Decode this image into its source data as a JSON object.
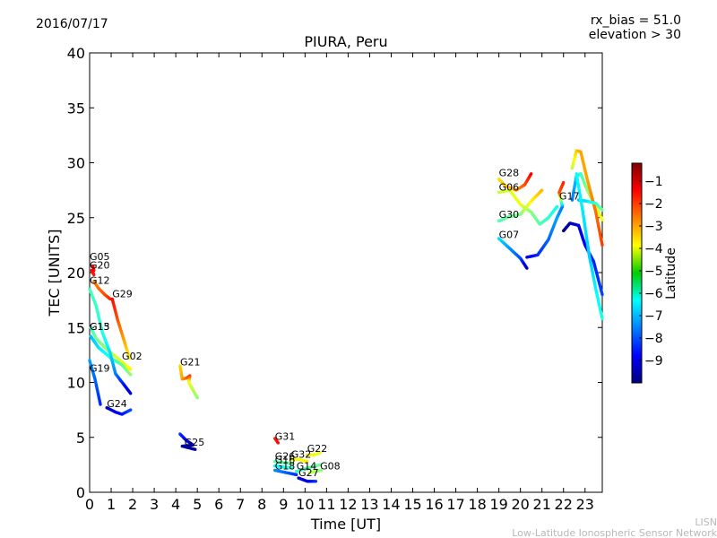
{
  "header": {
    "date": "2016/07/17",
    "rx_bias": "rx_bias = 51.0",
    "elevation": "elevation > 30"
  },
  "credits": {
    "line1": "LISN",
    "line2": "Low-Latitude Ionospheric Sensor Network"
  },
  "colors": {
    "colormap": "jet",
    "axis": "#000000",
    "background": "#ffffff"
  },
  "chart_data": {
    "type": "scatter",
    "title": "PIURA, Peru",
    "xlabel": "Time [UT]",
    "ylabel": "TEC [UNITS]",
    "xlim": [
      0,
      23.8
    ],
    "ylim": [
      0,
      40
    ],
    "x_ticks": [
      "0",
      "1",
      "2",
      "3",
      "4",
      "5",
      "6",
      "7",
      "8",
      "9",
      "10",
      "11",
      "12",
      "13",
      "14",
      "15",
      "16",
      "17",
      "18",
      "19",
      "20",
      "21",
      "22",
      "23"
    ],
    "y_ticks": [
      "0",
      "5",
      "10",
      "15",
      "20",
      "25",
      "30",
      "35",
      "40"
    ],
    "grid": false,
    "colorbar": {
      "label": "Latitude",
      "range": [
        -10,
        -0.2
      ],
      "ticks": [
        "−1",
        "−2",
        "−3",
        "−4",
        "−5",
        "−6",
        "−7",
        "−8",
        "−9"
      ]
    },
    "series": [
      {
        "name": "G05",
        "label_at": [
          0.0,
          21.0
        ],
        "points": [
          [
            0.15,
            20.6,
            -1.3
          ],
          [
            0.2,
            20.2,
            -1.5
          ]
        ]
      },
      {
        "name": "G20",
        "label_at": [
          0.0,
          20.2
        ],
        "points": [
          [
            0.1,
            20.2,
            -1.4
          ],
          [
            0.2,
            19.8,
            -1.6
          ]
        ]
      },
      {
        "name": "G12",
        "label_at": [
          0.0,
          18.8
        ],
        "points": [
          [
            0.2,
            19.2,
            -2.7
          ],
          [
            0.4,
            18.6,
            -2.5
          ],
          [
            0.7,
            18.0,
            -2.2
          ],
          [
            0.95,
            17.6,
            -1.8
          ]
        ]
      },
      {
        "name": "G29",
        "label_at": [
          1.05,
          17.6
        ],
        "points": [
          [
            1.05,
            17.6,
            -1.5
          ],
          [
            1.3,
            15.7,
            -2.2
          ],
          [
            1.6,
            13.8,
            -3.0
          ],
          [
            1.85,
            12.2,
            -3.8
          ]
        ]
      },
      {
        "name": "G15",
        "label_at": [
          0.0,
          14.6
        ],
        "points": [
          [
            0.05,
            15.0,
            -5.8
          ],
          [
            0.3,
            14.0,
            -5.3
          ],
          [
            0.8,
            13.0,
            -4.8
          ],
          [
            1.3,
            12.2,
            -4.3
          ],
          [
            1.9,
            11.2,
            -3.8
          ]
        ]
      },
      {
        "name": "G13",
        "label_at": [
          0.0,
          14.6
        ],
        "points": [
          [
            0.05,
            14.2,
            -7.0
          ],
          [
            0.4,
            13.2,
            -6.6
          ],
          [
            1.0,
            12.2,
            -6.0
          ],
          [
            1.5,
            11.6,
            -5.4
          ],
          [
            1.9,
            10.7,
            -4.9
          ]
        ]
      },
      {
        "name": "G02",
        "label_at": [
          1.5,
          11.9
        ],
        "points": [
          [
            0.0,
            18.5,
            -5.6
          ],
          [
            0.3,
            17.0,
            -5.8
          ],
          [
            0.6,
            14.5,
            -6.0
          ],
          [
            0.95,
            12.7,
            -6.6
          ],
          [
            1.2,
            10.8,
            -7.5
          ],
          [
            1.55,
            9.9,
            -8.5
          ],
          [
            1.9,
            9.0,
            -9.2
          ]
        ]
      },
      {
        "name": "G19",
        "label_at": [
          0.0,
          10.8
        ],
        "points": [
          [
            0.0,
            12.0,
            -7.2
          ],
          [
            0.25,
            10.3,
            -7.8
          ],
          [
            0.5,
            8.0,
            -8.4
          ]
        ]
      },
      {
        "name": "G24",
        "label_at": [
          0.8,
          7.6
        ],
        "points": [
          [
            0.8,
            7.7,
            -9.4
          ],
          [
            1.2,
            7.3,
            -9.0
          ],
          [
            1.5,
            7.1,
            -8.6
          ],
          [
            1.9,
            7.5,
            -8.1
          ]
        ]
      },
      {
        "name": "G21",
        "label_at": [
          4.2,
          11.4
        ],
        "points": [
          [
            4.2,
            11.5,
            -3.5
          ],
          [
            4.3,
            10.3,
            -3.0
          ],
          [
            4.5,
            10.4,
            -2.4
          ],
          [
            4.65,
            10.6,
            -1.8
          ],
          [
            4.6,
            10.0,
            -4.0
          ],
          [
            4.8,
            9.3,
            -4.5
          ],
          [
            5.0,
            8.6,
            -4.9
          ]
        ]
      },
      {
        "name": "G25",
        "label_at": [
          4.4,
          4.1
        ],
        "points": [
          [
            4.2,
            5.3,
            -8.3
          ],
          [
            4.5,
            4.7,
            -8.8
          ],
          [
            4.8,
            4.3,
            -9.3
          ],
          [
            4.3,
            4.2,
            -9.6
          ],
          [
            4.9,
            3.9,
            -9.8
          ]
        ]
      },
      {
        "name": "G31",
        "label_at": [
          8.6,
          4.6
        ],
        "points": [
          [
            8.6,
            4.9,
            -1.8
          ],
          [
            8.75,
            4.5,
            -1.5
          ]
        ]
      },
      {
        "name": "G22",
        "label_at": [
          10.1,
          3.5
        ],
        "points": [
          [
            10.1,
            3.4,
            -3.6
          ],
          [
            10.4,
            3.4,
            -3.9
          ],
          [
            10.7,
            3.6,
            -4.1
          ]
        ]
      },
      {
        "name": "G32",
        "label_at": [
          9.35,
          3.0
        ],
        "points": [
          [
            9.35,
            3.0,
            -4.2
          ],
          [
            9.7,
            3.0,
            -4.0
          ],
          [
            10.1,
            2.8,
            -3.7
          ]
        ]
      },
      {
        "name": "G26",
        "label_at": [
          8.6,
          2.8
        ],
        "points": [
          [
            8.6,
            2.8,
            -5.6
          ],
          [
            9.0,
            2.7,
            -5.4
          ],
          [
            9.4,
            2.6,
            -5.2
          ]
        ]
      },
      {
        "name": "G16",
        "label_at": [
          8.6,
          2.5
        ],
        "points": [
          [
            8.6,
            2.4,
            -6.4
          ],
          [
            9.0,
            2.3,
            -6.2
          ],
          [
            9.4,
            2.2,
            -6.0
          ]
        ]
      },
      {
        "name": "G18",
        "label_at": [
          8.6,
          1.9
        ],
        "points": [
          [
            8.6,
            2.0,
            -7.4
          ],
          [
            9.1,
            1.8,
            -7.8
          ],
          [
            9.6,
            1.6,
            -8.3
          ]
        ]
      },
      {
        "name": "G14",
        "label_at": [
          9.6,
          1.9
        ],
        "points": [
          [
            9.6,
            1.9,
            -5.9
          ],
          [
            10.1,
            2.2,
            -5.6
          ],
          [
            10.7,
            2.5,
            -5.3
          ]
        ]
      },
      {
        "name": "G08",
        "label_at": [
          10.7,
          1.9
        ],
        "points": [
          [
            10.2,
            1.8,
            -4.4
          ],
          [
            10.5,
            1.9,
            -4.7
          ],
          [
            10.75,
            2.0,
            -5.0
          ]
        ]
      },
      {
        "name": "G27",
        "label_at": [
          9.7,
          1.3
        ],
        "points": [
          [
            9.7,
            1.3,
            -9.3
          ],
          [
            10.1,
            1.0,
            -9.0
          ],
          [
            10.5,
            1.0,
            -8.3
          ]
        ]
      },
      {
        "name": "G28",
        "label_at": [
          19.0,
          28.6
        ],
        "points": [
          [
            19.0,
            28.5,
            -3.6
          ],
          [
            19.3,
            27.9,
            -3.3
          ],
          [
            19.8,
            27.5,
            -3.0
          ],
          [
            20.2,
            28.0,
            -2.2
          ],
          [
            20.5,
            29.0,
            -1.4
          ]
        ]
      },
      {
        "name": "G06",
        "label_at": [
          19.0,
          27.3
        ],
        "points": [
          [
            19.0,
            27.3,
            -4.4
          ],
          [
            19.5,
            27.5,
            -4.2
          ],
          [
            20.0,
            26.2,
            -4.0
          ],
          [
            20.5,
            25.5,
            -5.0
          ],
          [
            20.9,
            24.4,
            -5.5
          ],
          [
            21.3,
            25.0,
            -5.9
          ],
          [
            21.7,
            26.0,
            -6.2
          ]
        ]
      },
      {
        "name": "G30",
        "label_at": [
          19.0,
          24.8
        ],
        "points": [
          [
            19.0,
            24.7,
            -5.6
          ],
          [
            19.5,
            25.1,
            -5.4
          ],
          [
            20.0,
            25.3,
            -5.1
          ],
          [
            20.5,
            26.5,
            -3.8
          ],
          [
            21.0,
            27.5,
            -3.2
          ]
        ]
      },
      {
        "name": "G07",
        "label_at": [
          19.0,
          23.0
        ],
        "points": [
          [
            19.0,
            23.1,
            -6.6
          ],
          [
            19.5,
            22.2,
            -7.3
          ],
          [
            20.0,
            21.3,
            -8.0
          ],
          [
            20.3,
            20.4,
            -9.4
          ]
        ]
      },
      {
        "name": "G17",
        "label_at": [
          21.8,
          26.5
        ],
        "points": [
          [
            20.3,
            21.4,
            -9.1
          ],
          [
            20.8,
            21.6,
            -8.4
          ],
          [
            21.3,
            23.0,
            -7.8
          ],
          [
            21.7,
            25.0,
            -7.2
          ],
          [
            21.95,
            26.0,
            -7.6
          ],
          [
            21.8,
            27.3,
            -2.2
          ],
          [
            22.0,
            28.2,
            -1.8
          ]
        ]
      },
      {
        "name": "",
        "label_at": null,
        "points": [
          [
            22.0,
            23.8,
            -9.8
          ],
          [
            22.3,
            24.5,
            -9.6
          ],
          [
            22.7,
            24.3,
            -9.1
          ],
          [
            23.0,
            22.5,
            -8.8
          ],
          [
            23.4,
            21.0,
            -8.5
          ],
          [
            23.8,
            18.0,
            -8.1
          ]
        ]
      },
      {
        "name": "",
        "label_at": null,
        "points": [
          [
            22.4,
            26.6,
            -7.6
          ],
          [
            22.6,
            28.8,
            -6.8
          ],
          [
            22.8,
            29.0,
            -5.8
          ],
          [
            23.1,
            27.5,
            -5.0
          ],
          [
            23.5,
            26.0,
            -4.4
          ],
          [
            23.8,
            24.8,
            -4.0
          ]
        ]
      },
      {
        "name": "",
        "label_at": null,
        "points": [
          [
            22.4,
            29.5,
            -4.5
          ],
          [
            22.6,
            31.1,
            -3.4
          ],
          [
            22.8,
            31.0,
            -3.0
          ],
          [
            23.1,
            28.5,
            -3.0
          ],
          [
            23.5,
            25.5,
            -2.5
          ],
          [
            23.8,
            22.5,
            -2.0
          ]
        ]
      },
      {
        "name": "",
        "label_at": null,
        "points": [
          [
            22.7,
            26.6,
            -6.9
          ],
          [
            23.1,
            26.5,
            -6.6
          ],
          [
            23.5,
            26.3,
            -5.8
          ],
          [
            23.8,
            25.7,
            -5.3
          ]
        ]
      },
      {
        "name": "",
        "label_at": null,
        "points": [
          [
            22.6,
            29.0,
            -6.3
          ],
          [
            22.9,
            25.5,
            -6.5
          ],
          [
            23.2,
            21.5,
            -6.8
          ],
          [
            23.5,
            18.5,
            -6.4
          ],
          [
            23.8,
            15.8,
            -6.1
          ]
        ]
      }
    ]
  }
}
